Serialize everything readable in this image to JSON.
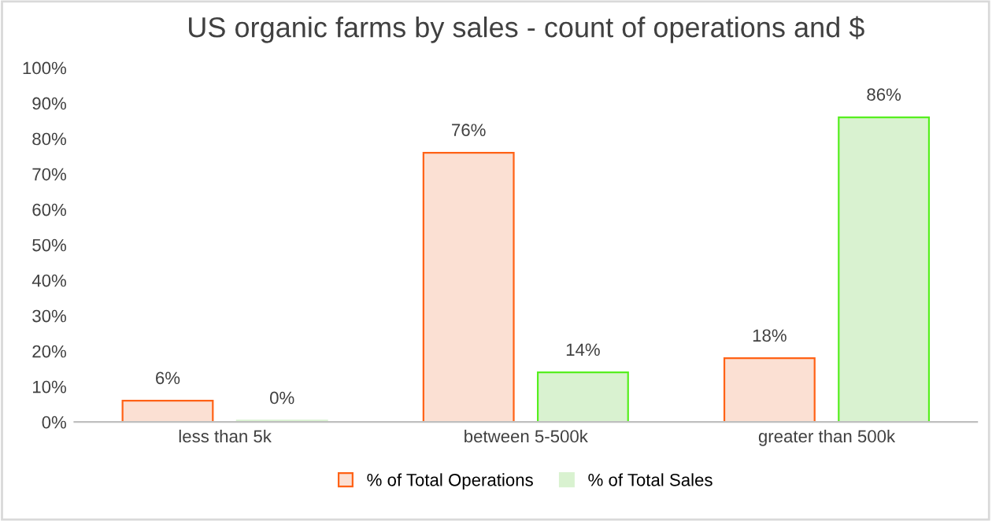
{
  "chart_data": {
    "type": "bar",
    "title": "US organic farms by sales - count of operations and $",
    "categories": [
      "less than 5k",
      "between 5-500k",
      "greater than 500k"
    ],
    "series": [
      {
        "name": "% of Total Operations",
        "color": "#fbe0d3",
        "values": [
          6,
          76,
          18
        ],
        "value_labels": [
          "6%",
          "76%",
          "18%"
        ]
      },
      {
        "name": "% of Total Sales",
        "color": "#d9f2d0",
        "values": [
          0.4,
          14,
          86
        ],
        "value_labels": [
          "0%",
          "14%",
          "86%"
        ]
      }
    ],
    "ylim": [
      0,
      100
    ],
    "yticks": [
      {
        "value": 0,
        "label": "0%"
      },
      {
        "value": 10,
        "label": "10%"
      },
      {
        "value": 20,
        "label": "20%"
      },
      {
        "value": 30,
        "label": "30%"
      },
      {
        "value": 40,
        "label": "40%"
      },
      {
        "value": 50,
        "label": "50%"
      },
      {
        "value": 60,
        "label": "60%"
      },
      {
        "value": 70,
        "label": "70%"
      },
      {
        "value": 80,
        "label": "80%"
      },
      {
        "value": 90,
        "label": "90%"
      },
      {
        "value": 100,
        "label": "100%"
      }
    ],
    "legend": "bottom",
    "grid": false
  }
}
